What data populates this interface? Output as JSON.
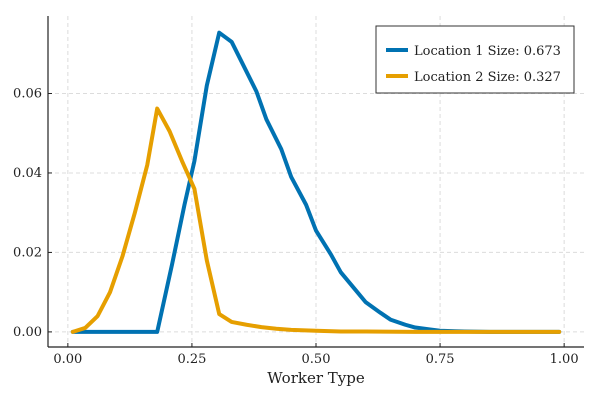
{
  "chart_data": {
    "type": "line",
    "title": "",
    "xlabel": "Worker Type",
    "ylabel": "",
    "xlim": [
      -0.04,
      1.04
    ],
    "ylim": [
      -0.0038,
      0.0795
    ],
    "xticks": [
      0.0,
      0.25,
      0.5,
      0.75,
      1.0
    ],
    "xtick_labels": [
      "0.00",
      "0.25",
      "0.50",
      "0.75",
      "1.00"
    ],
    "yticks": [
      0.0,
      0.02,
      0.04,
      0.06
    ],
    "ytick_labels": [
      "0.00",
      "0.02",
      "0.04",
      "0.06"
    ],
    "grid": true,
    "legend_position": "top-right",
    "series": [
      {
        "name": "Location 1 Size: 0.673",
        "color": "#0072b2",
        "x": [
          0.01,
          0.03,
          0.05,
          0.07,
          0.09,
          0.11,
          0.13,
          0.15,
          0.18,
          0.21,
          0.235,
          0.255,
          0.28,
          0.305,
          0.33,
          0.35,
          0.38,
          0.4,
          0.43,
          0.45,
          0.48,
          0.5,
          0.53,
          0.55,
          0.58,
          0.6,
          0.63,
          0.65,
          0.68,
          0.7,
          0.73,
          0.75,
          0.78,
          0.8,
          0.85,
          0.9,
          0.95,
          0.99
        ],
        "y": [
          0.0,
          0.0,
          0.0,
          0.0,
          0.0,
          0.0,
          0.0,
          0.0,
          0.0,
          0.017,
          0.032,
          0.043,
          0.062,
          0.0753,
          0.073,
          0.068,
          0.0605,
          0.0535,
          0.046,
          0.039,
          0.032,
          0.0255,
          0.0195,
          0.015,
          0.0105,
          0.0075,
          0.0048,
          0.0031,
          0.0018,
          0.0011,
          0.0006,
          0.0003,
          0.00015,
          0.0001,
          0.0,
          0.0,
          0.0,
          0.0
        ]
      },
      {
        "name": "Location 2 Size: 0.327",
        "color": "#e69f00",
        "x": [
          0.01,
          0.035,
          0.06,
          0.085,
          0.11,
          0.135,
          0.16,
          0.18,
          0.205,
          0.23,
          0.255,
          0.28,
          0.305,
          0.33,
          0.36,
          0.39,
          0.42,
          0.45,
          0.5,
          0.55,
          0.6,
          0.7,
          0.8,
          0.9,
          0.99
        ],
        "y": [
          0.0,
          0.001,
          0.004,
          0.01,
          0.019,
          0.03,
          0.042,
          0.0562,
          0.0505,
          0.043,
          0.036,
          0.018,
          0.0045,
          0.0025,
          0.0018,
          0.0012,
          0.0008,
          0.0005,
          0.0003,
          0.0001,
          0.0001,
          0.0,
          0.0,
          0.0,
          0.0
        ]
      }
    ]
  }
}
